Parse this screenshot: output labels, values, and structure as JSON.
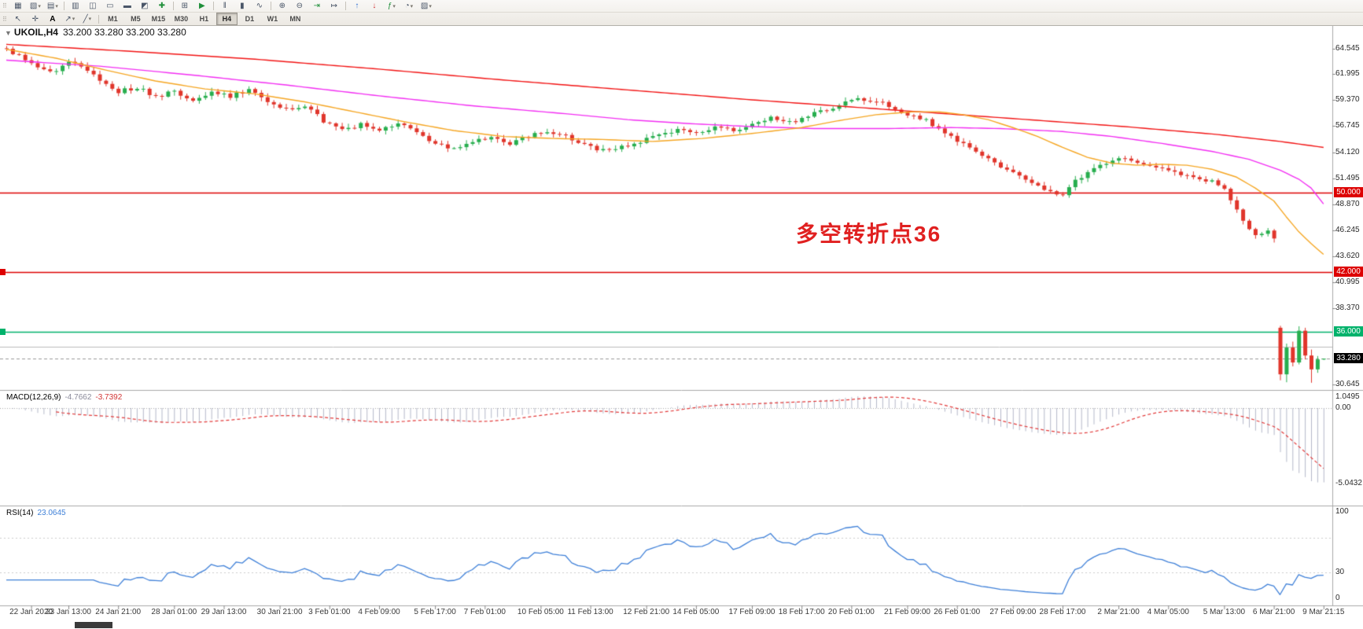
{
  "toolbar": {
    "row1": [
      {
        "type": "grip"
      },
      {
        "name": "menu-grid-icon",
        "glyph": "▦"
      },
      {
        "name": "new-chart-icon",
        "glyph": "▧",
        "dropdown": true
      },
      {
        "name": "profiles-icon",
        "glyph": "▤",
        "dropdown": true
      },
      {
        "type": "sep"
      },
      {
        "name": "market-watch-icon",
        "glyph": "▥"
      },
      {
        "name": "data-window-icon",
        "glyph": "◫"
      },
      {
        "name": "navigator-icon",
        "glyph": "▭"
      },
      {
        "name": "terminal-icon",
        "glyph": "▬"
      },
      {
        "name": "strategy-tester-icon",
        "glyph": "◩"
      },
      {
        "name": "new-order-icon",
        "glyph": "✚",
        "color": "#1f8f3a"
      },
      {
        "type": "sep"
      },
      {
        "name": "metaeditor-icon",
        "glyph": "⊞"
      },
      {
        "name": "autotrading-icon",
        "glyph": "▶",
        "color": "#1f8f3a"
      },
      {
        "type": "sep"
      },
      {
        "name": "chart-bars-icon",
        "glyph": "‖"
      },
      {
        "name": "chart-candles-icon",
        "glyph": "▮"
      },
      {
        "name": "chart-line-icon",
        "glyph": "∿"
      },
      {
        "type": "sep"
      },
      {
        "name": "zoom-in-icon",
        "glyph": "⊕"
      },
      {
        "name": "zoom-out-icon",
        "glyph": "⊖"
      },
      {
        "name": "auto-scroll-icon",
        "glyph": "⇥",
        "color": "#1f8f3a"
      },
      {
        "name": "chart-shift-icon",
        "glyph": "↦"
      },
      {
        "type": "sep"
      },
      {
        "name": "buy-arrow-icon",
        "glyph": "↑",
        "color": "#2f6fd0"
      },
      {
        "name": "sell-arrow-icon",
        "glyph": "↓",
        "color": "#d03030"
      },
      {
        "name": "indicators-icon",
        "glyph": "ƒ",
        "color": "#1f8f3a",
        "dropdown": true
      },
      {
        "name": "periods-icon",
        "glyph": "◔",
        "dropdown": true
      },
      {
        "name": "templates-icon",
        "glyph": "▨",
        "dropdown": true
      }
    ],
    "row2_icons": [
      {
        "type": "grip"
      },
      {
        "name": "cursor-icon",
        "glyph": "↖"
      },
      {
        "name": "crosshair-icon",
        "glyph": "✛"
      },
      {
        "name": "text-tool-icon",
        "glyph": "A",
        "color": "#000000",
        "bold": true
      },
      {
        "name": "arrow-tool-icon",
        "glyph": "↗",
        "dropdown": true
      },
      {
        "name": "line-tool-icon",
        "glyph": "╱",
        "dropdown": true
      },
      {
        "type": "sep"
      }
    ],
    "timeframes": {
      "items": [
        "M1",
        "M5",
        "M15",
        "M30",
        "H1",
        "H4",
        "D1",
        "W1",
        "MN"
      ],
      "active": "H4"
    }
  },
  "chart": {
    "symbol_label": "UKOIL,H4",
    "ohlc_text": "33.200 33.280 33.200 33.280"
  },
  "chart_data": {
    "type": "candlestick",
    "symbol": "UKOIL",
    "timeframe": "H4",
    "annotation": {
      "text": "多空转折点36",
      "color": "#e02020"
    },
    "price_axis": {
      "ticks": [
        {
          "label": "64.545",
          "value": 64.545
        },
        {
          "label": "61.995",
          "value": 61.995
        },
        {
          "label": "59.370",
          "value": 59.37
        },
        {
          "label": "56.745",
          "value": 56.745
        },
        {
          "label": "54.120",
          "value": 54.12
        },
        {
          "label": "51.495",
          "value": 51.495
        },
        {
          "label": "48.870",
          "value": 48.87
        },
        {
          "label": "46.245",
          "value": 46.245
        },
        {
          "label": "43.620",
          "value": 43.62
        },
        {
          "label": "40.995",
          "value": 40.995
        },
        {
          "label": "38.370",
          "value": 38.37
        },
        {
          "label": "30.645",
          "value": 30.645
        }
      ]
    },
    "time_axis": {
      "labels": [
        "22 Jan 2020",
        "23 Jan 13:00",
        "24 Jan 21:00",
        "28 Jan 01:00",
        "29 Jan 13:00",
        "30 Jan 21:00",
        "3 Feb 01:00",
        "4 Feb 09:00",
        "5 Feb 17:00",
        "7 Feb 01:00",
        "10 Feb 05:00",
        "11 Feb 13:00",
        "12 Feb 21:00",
        "14 Feb 05:00",
        "17 Feb 09:00",
        "18 Feb 17:00",
        "20 Feb 01:00",
        "21 Feb 09:00",
        "26 Feb 01:00",
        "27 Feb 09:00",
        "28 Feb 17:00",
        "2 Mar 21:00",
        "4 Mar 05:00",
        "5 Mar 13:00",
        "6 Mar 21:00",
        "9 Mar 21:15"
      ],
      "bars": [
        4,
        10,
        18,
        27,
        35,
        44,
        52,
        60,
        69,
        77,
        86,
        94,
        103,
        111,
        120,
        128,
        136,
        145,
        153,
        162,
        170,
        179,
        187,
        196,
        204,
        212
      ]
    },
    "horizontal_lines": [
      {
        "price": 50.0,
        "label": "50.000",
        "color": "#dd0000",
        "width": 1.4
      },
      {
        "price": 42.0,
        "label": "42.000",
        "color": "#dd0000",
        "width": 1.4,
        "left_marker": true
      },
      {
        "price": 36.0,
        "label": "36.000",
        "color": "#00b26b",
        "width": 1.6,
        "left_marker": true
      },
      {
        "price": 34.5,
        "color": "#bbbbbb",
        "width": 1
      }
    ],
    "bid": {
      "price": 33.28,
      "label": "33.280",
      "color": "#000000"
    },
    "candles": {
      "count": 213,
      "up_color": "#27ae4e",
      "down_color": "#e0352b",
      "keyframes": [
        [
          0,
          64.4
        ],
        [
          2,
          64.0
        ],
        [
          5,
          62.6
        ],
        [
          8,
          62.2
        ],
        [
          10,
          63.3
        ],
        [
          13,
          62.4
        ],
        [
          16,
          60.9
        ],
        [
          18,
          60.2
        ],
        [
          21,
          60.7
        ],
        [
          24,
          59.7
        ],
        [
          27,
          60.2
        ],
        [
          30,
          59.4
        ],
        [
          33,
          60.3
        ],
        [
          36,
          59.8
        ],
        [
          39,
          60.4
        ],
        [
          42,
          59.2
        ],
        [
          45,
          58.4
        ],
        [
          48,
          58.8
        ],
        [
          51,
          57.3
        ],
        [
          54,
          56.4
        ],
        [
          57,
          56.9
        ],
        [
          60,
          56.2
        ],
        [
          63,
          57.1
        ],
        [
          66,
          56.3
        ],
        [
          69,
          55.0
        ],
        [
          72,
          54.5
        ],
        [
          75,
          55.3
        ],
        [
          78,
          55.7
        ],
        [
          81,
          55.0
        ],
        [
          84,
          55.8
        ],
        [
          87,
          56.3
        ],
        [
          90,
          55.7
        ],
        [
          93,
          54.9
        ],
        [
          96,
          54.3
        ],
        [
          99,
          54.7
        ],
        [
          102,
          55.2
        ],
        [
          105,
          55.9
        ],
        [
          108,
          56.4
        ],
        [
          111,
          56.1
        ],
        [
          114,
          56.7
        ],
        [
          117,
          56.3
        ],
        [
          120,
          57.1
        ],
        [
          123,
          57.5
        ],
        [
          126,
          57.1
        ],
        [
          129,
          57.8
        ],
        [
          132,
          58.4
        ],
        [
          135,
          59.1
        ],
        [
          138,
          59.5
        ],
        [
          141,
          59.0
        ],
        [
          144,
          58.2
        ],
        [
          147,
          57.6
        ],
        [
          150,
          56.6
        ],
        [
          153,
          55.3
        ],
        [
          156,
          54.2
        ],
        [
          159,
          53.0
        ],
        [
          162,
          52.0
        ],
        [
          165,
          51.0
        ],
        [
          168,
          50.1
        ],
        [
          170,
          49.8
        ],
        [
          172,
          51.2
        ],
        [
          174,
          52.1
        ],
        [
          176,
          52.8
        ],
        [
          178,
          53.2
        ],
        [
          180,
          53.6
        ],
        [
          182,
          53.1
        ],
        [
          184,
          52.6
        ],
        [
          186,
          52.4
        ],
        [
          188,
          52.0
        ],
        [
          190,
          51.7
        ],
        [
          192,
          51.4
        ],
        [
          194,
          51.2
        ],
        [
          196,
          50.4
        ],
        [
          197,
          49.3
        ],
        [
          198,
          48.3
        ],
        [
          199,
          47.2
        ],
        [
          200,
          46.3
        ],
        [
          201,
          45.7
        ],
        [
          202,
          45.9
        ],
        [
          203,
          46.2
        ],
        [
          204,
          45.4
        ]
      ],
      "tail": [
        {
          "i": 205,
          "o": 36.4,
          "h": 36.6,
          "l": 31.1,
          "c": 31.7
        },
        {
          "i": 206,
          "o": 31.7,
          "h": 34.8,
          "l": 30.9,
          "c": 34.4
        },
        {
          "i": 207,
          "o": 34.4,
          "h": 35.0,
          "l": 32.5,
          "c": 32.9
        },
        {
          "i": 208,
          "o": 32.9,
          "h": 36.55,
          "l": 32.7,
          "c": 36.1
        },
        {
          "i": 209,
          "o": 36.1,
          "h": 36.4,
          "l": 33.2,
          "c": 33.6
        },
        {
          "i": 210,
          "o": 33.6,
          "h": 34.2,
          "l": 30.85,
          "c": 32.2
        },
        {
          "i": 211,
          "o": 32.2,
          "h": 33.55,
          "l": 31.85,
          "c": 33.2
        },
        {
          "i": 212,
          "o": 33.2,
          "h": 33.29,
          "l": 33.15,
          "c": 33.28
        }
      ]
    },
    "moving_averages": [
      {
        "name": "ma-slow",
        "color": "#f21414",
        "points": [
          [
            0,
            65.0
          ],
          [
            20,
            64.3
          ],
          [
            40,
            63.5
          ],
          [
            60,
            62.5
          ],
          [
            80,
            61.4
          ],
          [
            100,
            60.4
          ],
          [
            120,
            59.4
          ],
          [
            140,
            58.5
          ],
          [
            160,
            57.6
          ],
          [
            180,
            56.7
          ],
          [
            195,
            55.9
          ],
          [
            205,
            55.2
          ],
          [
            212,
            54.6
          ]
        ]
      },
      {
        "name": "ma-medium",
        "color": "#f22ef2",
        "points": [
          [
            0,
            63.4
          ],
          [
            15,
            62.8
          ],
          [
            30,
            61.9
          ],
          [
            45,
            60.9
          ],
          [
            60,
            59.8
          ],
          [
            75,
            58.8
          ],
          [
            90,
            58.0
          ],
          [
            100,
            57.4
          ],
          [
            110,
            57.0
          ],
          [
            120,
            56.7
          ],
          [
            130,
            56.5
          ],
          [
            142,
            56.5
          ],
          [
            152,
            56.6
          ],
          [
            160,
            56.5
          ],
          [
            170,
            56.2
          ],
          [
            178,
            55.7
          ],
          [
            186,
            55.0
          ],
          [
            194,
            54.2
          ],
          [
            200,
            53.4
          ],
          [
            205,
            52.3
          ],
          [
            208,
            51.4
          ],
          [
            210,
            50.5
          ],
          [
            212,
            48.9
          ]
        ]
      },
      {
        "name": "ma-fast",
        "color": "#f5a623",
        "points": [
          [
            0,
            64.5
          ],
          [
            8,
            63.6
          ],
          [
            16,
            62.4
          ],
          [
            24,
            61.3
          ],
          [
            32,
            60.5
          ],
          [
            40,
            60.0
          ],
          [
            48,
            59.2
          ],
          [
            56,
            58.2
          ],
          [
            64,
            57.2
          ],
          [
            72,
            56.3
          ],
          [
            80,
            55.7
          ],
          [
            88,
            55.5
          ],
          [
            96,
            55.4
          ],
          [
            104,
            55.2
          ],
          [
            112,
            55.5
          ],
          [
            120,
            56.0
          ],
          [
            128,
            56.6
          ],
          [
            134,
            57.3
          ],
          [
            140,
            57.9
          ],
          [
            146,
            58.2
          ],
          [
            150,
            58.2
          ],
          [
            154,
            57.9
          ],
          [
            158,
            57.4
          ],
          [
            162,
            56.6
          ],
          [
            166,
            55.7
          ],
          [
            170,
            54.6
          ],
          [
            174,
            53.6
          ],
          [
            178,
            53.0
          ],
          [
            182,
            52.8
          ],
          [
            186,
            52.9
          ],
          [
            190,
            52.8
          ],
          [
            194,
            52.4
          ],
          [
            198,
            51.6
          ],
          [
            201,
            50.5
          ],
          [
            204,
            49.2
          ],
          [
            206,
            47.6
          ],
          [
            208,
            46.1
          ],
          [
            210,
            44.9
          ],
          [
            212,
            43.8
          ]
        ]
      }
    ],
    "macd": {
      "label": "MACD(12,26,9)",
      "value_main": "-4.7662",
      "value_signal": "-3.7392",
      "fast": 12,
      "slow": 26,
      "signal": 9,
      "hist_color": "#b4b8c9",
      "signal_color": "#e23a3a",
      "scale_ticks": [
        {
          "label": "1.0495",
          "value": 1.0495
        },
        {
          "label": "0.00",
          "value": 0
        },
        {
          "label": "-5.0432",
          "value": -5.0432
        }
      ]
    },
    "rsi": {
      "label": "RSI(14)",
      "value": "23.0645",
      "period": 14,
      "color": "#3f80d8",
      "levels": [
        70,
        30
      ],
      "scale_ticks": [
        {
          "label": "100",
          "value": 100
        },
        {
          "label": "30",
          "value": 30
        },
        {
          "label": "0",
          "value": 0
        }
      ]
    }
  }
}
